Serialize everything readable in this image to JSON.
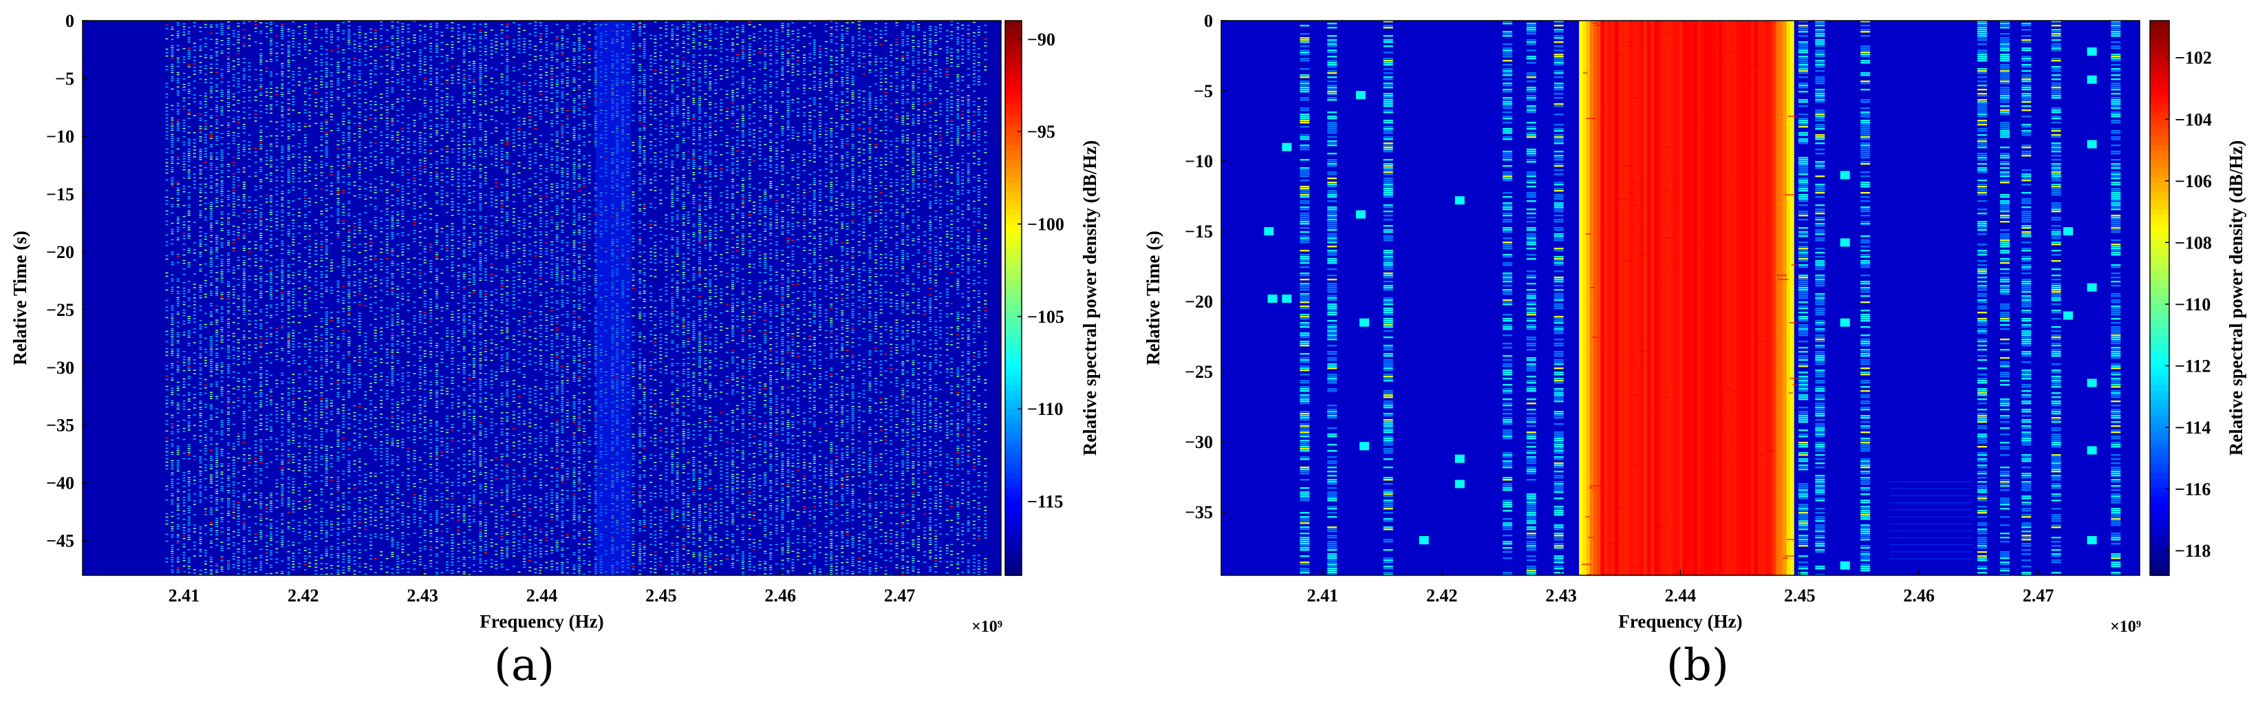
{
  "chart_data": [
    {
      "type": "heatmap",
      "panel_label": "(a)",
      "xlabel": "Frequency (Hz)",
      "ylabel": "Relative Time (s)",
      "x_exponent": "×10⁹",
      "x_ticks": [
        2.41,
        2.42,
        2.43,
        2.44,
        2.45,
        2.46,
        2.47
      ],
      "xlim": [
        2.4015,
        2.4785
      ],
      "y_ticks": [
        0,
        -5,
        -10,
        -15,
        -20,
        -25,
        -30,
        -35,
        -40,
        -45
      ],
      "ylim": [
        -48,
        0
      ],
      "colorbar_label": "Relative spectral power density (dB/Hz)",
      "colorbar_ticks": [
        -90,
        -95,
        -100,
        -105,
        -110,
        -115
      ],
      "clim": [
        -119,
        -89
      ],
      "colormap": "jet",
      "background_level": -117.5,
      "description_bands": "many narrow, intermittent signal lines across the full band"
    },
    {
      "type": "heatmap",
      "panel_label": "(b)",
      "xlabel": "Frequency (Hz)",
      "ylabel": "Relative Time (s)",
      "x_exponent": "×10⁹",
      "x_ticks": [
        2.41,
        2.42,
        2.43,
        2.44,
        2.45,
        2.46,
        2.47
      ],
      "xlim": [
        2.4015,
        2.4785
      ],
      "y_ticks": [
        0,
        -5,
        -10,
        -15,
        -20,
        -25,
        -30,
        -35
      ],
      "ylim": [
        -39.5,
        0
      ],
      "colorbar_label": "Relative spectral power density (dB/Hz)",
      "colorbar_ticks": [
        -102,
        -104,
        -106,
        -108,
        -110,
        -112,
        -114,
        -116,
        -118
      ],
      "clim": [
        -118.8,
        -100.8
      ],
      "colormap": "jet",
      "background_level": -117.5,
      "wideband_signal": {
        "f_start": 2.4315,
        "f_end": 2.4495,
        "level": -104
      }
    }
  ]
}
